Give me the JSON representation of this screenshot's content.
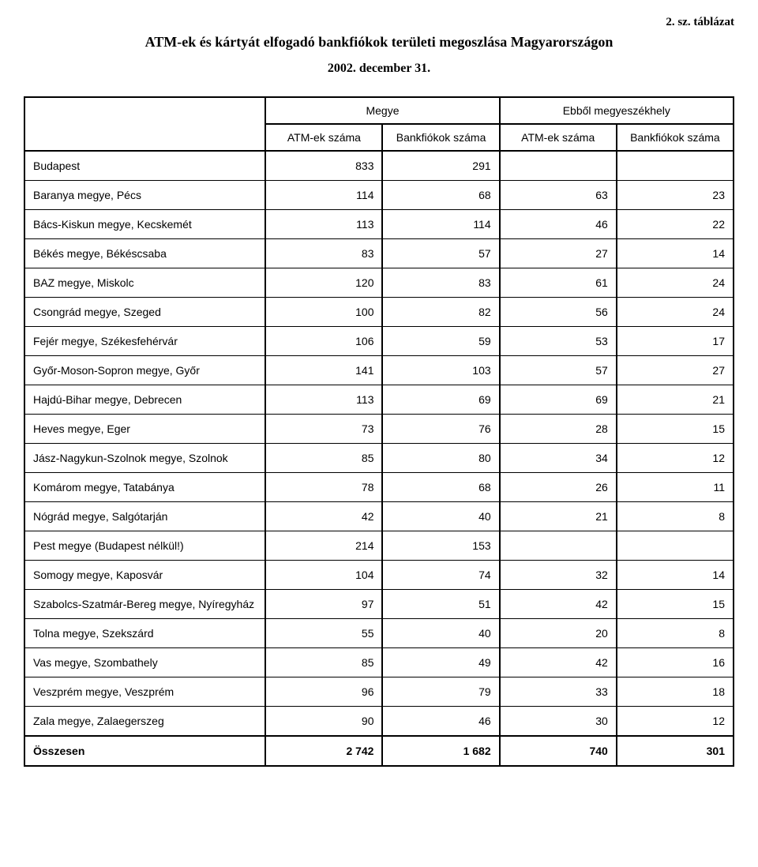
{
  "header": {
    "table_number": "2. sz. táblázat",
    "title": "ATM-ek és kártyát elfogadó bankfiókok területi megoszlása Magyarországon",
    "subtitle": "2002. december 31."
  },
  "table": {
    "group_headers": {
      "megye": "Megye",
      "ebbol": "Ebből megyeszékhely"
    },
    "sub_headers": {
      "atm1": "ATM-ek száma",
      "bank1": "Bankfiókok száma",
      "atm2": "ATM-ek száma",
      "bank2": "Bankfiókok száma"
    },
    "rows": [
      {
        "label": "Budapest",
        "c1": "833",
        "c2": "291",
        "c3": "",
        "c4": ""
      },
      {
        "label": "Baranya megye, Pécs",
        "c1": "114",
        "c2": "68",
        "c3": "63",
        "c4": "23"
      },
      {
        "label": "Bács-Kiskun megye, Kecskemét",
        "c1": "113",
        "c2": "114",
        "c3": "46",
        "c4": "22"
      },
      {
        "label": "Békés megye, Békéscsaba",
        "c1": "83",
        "c2": "57",
        "c3": "27",
        "c4": "14"
      },
      {
        "label": "BAZ megye, Miskolc",
        "c1": "120",
        "c2": "83",
        "c3": "61",
        "c4": "24"
      },
      {
        "label": "Csongrád megye, Szeged",
        "c1": "100",
        "c2": "82",
        "c3": "56",
        "c4": "24"
      },
      {
        "label": "Fejér megye, Székesfehérvár",
        "c1": "106",
        "c2": "59",
        "c3": "53",
        "c4": "17"
      },
      {
        "label": "Győr-Moson-Sopron megye, Győr",
        "c1": "141",
        "c2": "103",
        "c3": "57",
        "c4": "27"
      },
      {
        "label": "Hajdú-Bihar megye, Debrecen",
        "c1": "113",
        "c2": "69",
        "c3": "69",
        "c4": "21"
      },
      {
        "label": "Heves megye, Eger",
        "c1": "73",
        "c2": "76",
        "c3": "28",
        "c4": "15"
      },
      {
        "label": "Jász-Nagykun-Szolnok megye, Szolnok",
        "c1": "85",
        "c2": "80",
        "c3": "34",
        "c4": "12"
      },
      {
        "label": "Komárom megye, Tatabánya",
        "c1": "78",
        "c2": "68",
        "c3": "26",
        "c4": "11"
      },
      {
        "label": "Nógrád megye, Salgótarján",
        "c1": "42",
        "c2": "40",
        "c3": "21",
        "c4": "8"
      },
      {
        "label": "Pest megye (Budapest nélkül!)",
        "c1": "214",
        "c2": "153",
        "c3": "",
        "c4": ""
      },
      {
        "label": "Somogy megye, Kaposvár",
        "c1": "104",
        "c2": "74",
        "c3": "32",
        "c4": "14"
      },
      {
        "label": "Szabolcs-Szatmár-Bereg megye, Nyíregyház",
        "c1": "97",
        "c2": "51",
        "c3": "42",
        "c4": "15"
      },
      {
        "label": "Tolna megye, Szekszárd",
        "c1": "55",
        "c2": "40",
        "c3": "20",
        "c4": "8"
      },
      {
        "label": "Vas megye, Szombathely",
        "c1": "85",
        "c2": "49",
        "c3": "42",
        "c4": "16"
      },
      {
        "label": "Veszprém megye, Veszprém",
        "c1": "96",
        "c2": "79",
        "c3": "33",
        "c4": "18"
      },
      {
        "label": "Zala megye, Zalaegerszeg",
        "c1": "90",
        "c2": "46",
        "c3": "30",
        "c4": "12"
      }
    ],
    "total": {
      "label": "Összesen",
      "c1": "2 742",
      "c2": "1 682",
      "c3": "740",
      "c4": "301"
    }
  }
}
